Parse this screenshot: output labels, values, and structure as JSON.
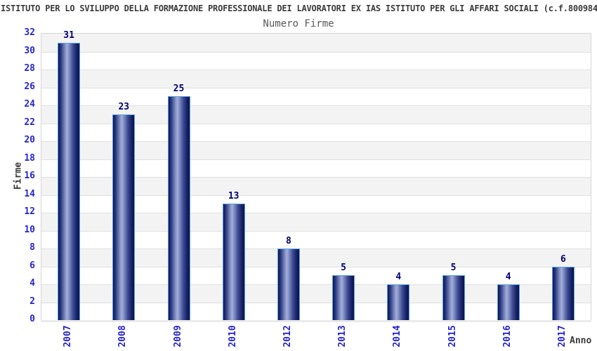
{
  "title": "ISTITUTO PER LO SVILUPPO DELLA FORMAZIONE PROFESSIONALE DEI LAVORATORI EX IAS ISTITUTO PER GLI AFFARI SOCIALI (c.f.800984",
  "subtitle": "Numero Firme",
  "axes": {
    "y_label": "Firme",
    "x_label": "Anno"
  },
  "chart_data": {
    "type": "bar",
    "title": "Numero Firme",
    "categories": [
      "2007",
      "2008",
      "2009",
      "2010",
      "2012",
      "2013",
      "2014",
      "2015",
      "2016",
      "2017"
    ],
    "values": [
      31,
      23,
      25,
      13,
      8,
      5,
      4,
      5,
      4,
      6
    ],
    "xlabel": "Anno",
    "ylabel": "Firme",
    "ylim": [
      0,
      32
    ],
    "ytick_step": 2,
    "grid": true,
    "alternating_bands": true,
    "legend": false
  },
  "colors": {
    "tick_label_blue": "#2525cd",
    "value_label_navy": "#000070",
    "title_gray": "#3b3b3b",
    "subtitle_gray": "#585858",
    "band_gray": "#f3f3f3",
    "gridline_gray": "#e0e0e0",
    "plot_border_gray": "#d6d6d6",
    "bar_border_lightblue": "#58a2e2",
    "bar_edge_dark": "#0d1553",
    "bar_mid": "#3c4a94",
    "bar_highlight": "#a2aed9"
  }
}
